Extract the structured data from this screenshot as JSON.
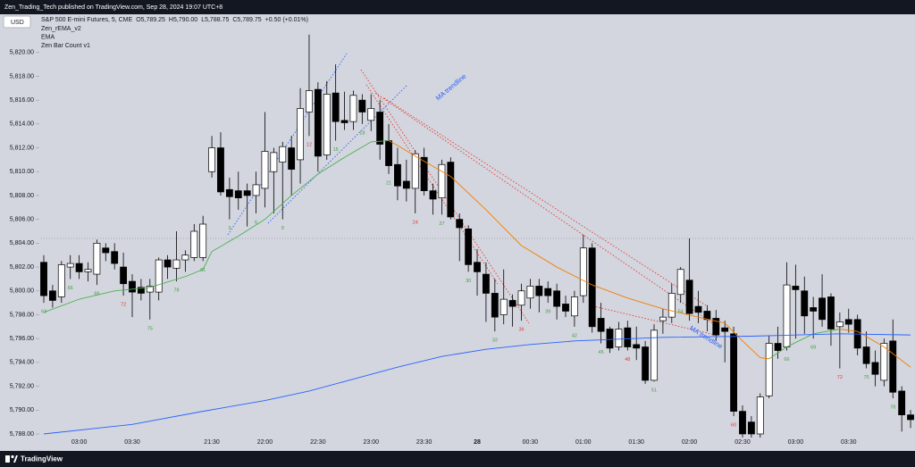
{
  "chart_data": {
    "type": "candlestick",
    "header": "Zen_Trading_Tech published on TradingView.com, Sep 28, 2024 19:07 UTC+8",
    "brand": "TradingView",
    "currency": "USD",
    "symbol": "S&P 500 E-mini Futures, 5, CME",
    "ohlc_labels": [
      "O5,789.25",
      "H5,790.00",
      "L5,788.75",
      "C5,789.75",
      "+0.50 (+0.01%)"
    ],
    "categories": [
      null,
      null,
      null,
      null,
      "03:00",
      null,
      null,
      null,
      null,
      null,
      "03:30",
      null,
      null,
      null,
      null,
      null,
      null,
      null,
      null,
      "21:30",
      null,
      null,
      null,
      null,
      null,
      "22:00",
      null,
      null,
      null,
      null,
      null,
      "22:30",
      null,
      null,
      null,
      null,
      null,
      "23:00",
      null,
      null,
      null,
      null,
      null,
      "23:30",
      null,
      null,
      null,
      null,
      null,
      "28",
      null,
      null,
      null,
      null,
      null,
      "00:30",
      null,
      null,
      null,
      null,
      null,
      "01:00",
      null,
      null,
      null,
      null,
      null,
      "01:30",
      null,
      null,
      null,
      null,
      null,
      "02:00",
      null,
      null,
      null,
      null,
      null,
      "02:30",
      null,
      null,
      null,
      null,
      null,
      "03:00",
      null,
      null,
      null,
      null,
      null,
      "03:30",
      null,
      null,
      null,
      null,
      null,
      null,
      null
    ],
    "open": [
      5802.4,
      5800,
      5799.5,
      5802,
      5802.3,
      5801.6,
      5801.4,
      5803.6,
      5803.3,
      5802,
      5800.8,
      5800.3,
      5799.9,
      5799.9,
      5802.6,
      5801.9,
      5802.6,
      5802.8,
      5802.8,
      5810,
      5812,
      5808.5,
      5808.4,
      5808.4,
      5808,
      5808.6,
      5810,
      5810.8,
      5812,
      5811,
      5815,
      5816.9,
      5811.4,
      5816.6,
      5814.3,
      5814.2,
      5816,
      5814.3,
      5815,
      5812.6,
      5810.6,
      5809.2,
      5808.6,
      5811.2,
      5808.4,
      5807.8,
      5810.8,
      5806,
      5805.2,
      5802.4,
      5801.4,
      5799.8,
      5798,
      5799.2,
      5798.8,
      5799.4,
      5800.4,
      5800.2,
      5800,
      5798.9,
      5797.9,
      5799.6,
      5803.6,
      5797.7,
      5796.8,
      5795.3,
      5796.9,
      5795.5,
      5795.3,
      5792.5,
      5797.5,
      5797.8,
      5799.7,
      5800.9,
      5798.7,
      5798.3,
      5797.7,
      5796.9,
      5796.4,
      5789.9,
      5789,
      5788,
      5791.2,
      5795.6,
      5795.3,
      5800.4,
      5800,
      5798.6,
      5799.4,
      5799.5,
      5797,
      5797.6,
      5797.6,
      5795.3,
      5794,
      5792.5,
      5795.8,
      5791.6,
      5789.6
    ],
    "high": [
      5803,
      5800.5,
      5802.5,
      5803,
      5803,
      5802.4,
      5804.3,
      5804,
      5804,
      5803.2,
      5801.4,
      5801,
      5801,
      5802.8,
      5803,
      5805,
      5803.4,
      5805.6,
      5806.3,
      5813,
      5813.3,
      5809.5,
      5810,
      5809,
      5810,
      5815,
      5812,
      5812.5,
      5813,
      5817,
      5821.5,
      5817.5,
      5817.6,
      5819,
      5816.7,
      5816.8,
      5816.5,
      5816.5,
      5816,
      5814,
      5812,
      5811,
      5811.8,
      5812,
      5809,
      5811,
      5811.2,
      5806.5,
      5805.5,
      5803.5,
      5802.4,
      5801,
      5801.8,
      5799.7,
      5800.6,
      5801,
      5801,
      5800.8,
      5800.6,
      5799.6,
      5800,
      5804.7,
      5804,
      5799,
      5797,
      5797.4,
      5797.5,
      5797,
      5795.8,
      5797.2,
      5798.5,
      5800.6,
      5802,
      5804.4,
      5800,
      5798.8,
      5798.4,
      5797.5,
      5797,
      5790.4,
      5789.5,
      5791.4,
      5796.2,
      5797,
      5802.4,
      5802.2,
      5801.2,
      5799.5,
      5801.4,
      5799.8,
      5798.2,
      5798.5,
      5798,
      5796.6,
      5795,
      5796,
      5797.6,
      5792,
      5790
    ],
    "low": [
      5799,
      5798.6,
      5799,
      5801,
      5801,
      5800.8,
      5800.5,
      5802.5,
      5801.8,
      5799.6,
      5797.8,
      5799.2,
      5797.6,
      5799.2,
      5801,
      5800.8,
      5801.6,
      5802.5,
      5802.5,
      5809.5,
      5808,
      5806,
      5806.8,
      5805.4,
      5806.5,
      5807,
      5806.5,
      5806,
      5808,
      5809,
      5813,
      5810,
      5811,
      5812.6,
      5813.5,
      5813.5,
      5814,
      5813.4,
      5811,
      5809.8,
      5807.6,
      5807.5,
      5806.5,
      5808,
      5806.4,
      5806.4,
      5806,
      5802.5,
      5801.6,
      5799.6,
      5797.4,
      5796.6,
      5797.2,
      5797,
      5797.5,
      5798.5,
      5798.2,
      5799,
      5797.6,
      5797.8,
      5797,
      5799,
      5796.5,
      5795.6,
      5794.8,
      5795,
      5795,
      5794.2,
      5792.2,
      5792.4,
      5796.4,
      5797.3,
      5799,
      5797.5,
      5797.3,
      5796.6,
      5795.8,
      5794,
      5789.5,
      5787.5,
      5787.3,
      5787.5,
      5791,
      5794.3,
      5795,
      5796,
      5796.4,
      5796,
      5797,
      5795.4,
      5793.5,
      5796.5,
      5794.6,
      5793.5,
      5792,
      5792,
      5791,
      5788.2,
      5788.5
    ],
    "close": [
      5799.6,
      5799.2,
      5802.2,
      5802.3,
      5801.6,
      5801.8,
      5804,
      5803.2,
      5802.3,
      5800.6,
      5799.9,
      5799.8,
      5800.4,
      5802.6,
      5802,
      5802.6,
      5803,
      5805,
      5805.6,
      5812,
      5808.3,
      5807.9,
      5807.8,
      5808,
      5808.9,
      5811.7,
      5811.6,
      5812.1,
      5810.2,
      5815.3,
      5816.8,
      5811.3,
      5816.5,
      5814.2,
      5814.1,
      5816.4,
      5815,
      5815.3,
      5812.3,
      5810.5,
      5808.8,
      5808.6,
      5811.5,
      5808.4,
      5807.7,
      5810.6,
      5806.2,
      5805.3,
      5802.2,
      5801.6,
      5799.8,
      5797.8,
      5799.3,
      5798.7,
      5800,
      5800.4,
      5799.6,
      5799.6,
      5798.7,
      5798.3,
      5799.5,
      5803.6,
      5797,
      5796.6,
      5795.2,
      5796.8,
      5795.3,
      5795.2,
      5792.5,
      5796.7,
      5797.8,
      5799.8,
      5801.8,
      5798.1,
      5798.2,
      5797.6,
      5796.3,
      5796.6,
      5789.9,
      5788,
      5788,
      5791.1,
      5795.6,
      5795,
      5800.5,
      5800.1,
      5797.9,
      5798.3,
      5797.6,
      5796.8,
      5797.4,
      5797.2,
      5795.2,
      5793.9,
      5793,
      5795.6,
      5791.5,
      5789.6,
      5789.2
    ],
    "up_color": "#ffffff",
    "down_color": "#000000",
    "series": [
      {
        "name": "Zen_rEMA_v2",
        "type": "line",
        "up_color": "#4caf50",
        "down_color": "#f57c00",
        "x": [
          0,
          4,
          8,
          12,
          16,
          18,
          19,
          22,
          25,
          28,
          31,
          34,
          37,
          39,
          40,
          42,
          46,
          50,
          54,
          58,
          62,
          66,
          70,
          74,
          77,
          79,
          81,
          82,
          84,
          87,
          90,
          92,
          95,
          98
        ],
        "values": [
          5798.2,
          5799.3,
          5800,
          5800.3,
          5801.2,
          5801.8,
          5803.3,
          5804.6,
          5806,
          5808,
          5809.8,
          5811.2,
          5812.5,
          5812.6,
          5812.2,
          5811.3,
          5809.6,
          5806.8,
          5803.8,
          5802,
          5800.5,
          5799.4,
          5798.5,
          5797.8,
          5797.3,
          5795.8,
          5794.4,
          5794.3,
          5795.3,
          5796.4,
          5796.8,
          5796.6,
          5795.3,
          5793.6
        ]
      },
      {
        "name": "EMA",
        "type": "line",
        "color": "#2962ff",
        "x": [
          0,
          10,
          18,
          25,
          30,
          35,
          40,
          45,
          50,
          55,
          60,
          70,
          80,
          90,
          98
        ],
        "values": [
          5788,
          5788.8,
          5789.9,
          5790.8,
          5791.6,
          5792.6,
          5793.6,
          5794.5,
          5795.1,
          5795.5,
          5795.8,
          5796.1,
          5796.2,
          5796.4,
          5796.3
        ]
      },
      {
        "name": "Zen Bar Count v1",
        "type": "count",
        "color": "#43a047",
        "highlight_every": 12,
        "highlight_color": "#e53935",
        "x": [
          0,
          3,
          6,
          9,
          12,
          15,
          18,
          21,
          24,
          27,
          30,
          33,
          36,
          39,
          42,
          45,
          48,
          51,
          54,
          57,
          60,
          63,
          66,
          69,
          72,
          78,
          84,
          87,
          90,
          93,
          96
        ],
        "values": [
          63,
          66,
          69,
          72,
          75,
          78,
          81,
          3,
          6,
          9,
          12,
          15,
          18,
          21,
          24,
          27,
          30,
          33,
          36,
          39,
          42,
          45,
          48,
          51,
          54,
          60,
          66,
          69,
          72,
          75,
          78
        ]
      }
    ],
    "annotations": [
      "MA trendline",
      "MA trendline"
    ],
    "reference_line": 5804.4,
    "xlim": [
      -0.91,
      98.5
    ],
    "ylim": [
      5787.7,
      5823.2
    ],
    "yticks": [
      {
        "value": 5788,
        "label": "5,788.00"
      },
      {
        "value": 5790,
        "label": "5,790.00"
      },
      {
        "value": 5792,
        "label": "5,792.00"
      },
      {
        "value": 5794,
        "label": "5,794.00"
      },
      {
        "value": 5796,
        "label": "5,796.00"
      },
      {
        "value": 5798,
        "label": "5,798.00"
      },
      {
        "value": 5800,
        "label": "5,800.00"
      },
      {
        "value": 5802,
        "label": "5,802.00"
      },
      {
        "value": 5804,
        "label": "5,804.00"
      },
      {
        "value": 5806,
        "label": "5,806.00"
      },
      {
        "value": 5808,
        "label": "5,808.00"
      },
      {
        "value": 5810,
        "label": "5,810.00"
      },
      {
        "value": 5812,
        "label": "5,812.00"
      },
      {
        "value": 5814,
        "label": "5,814.00"
      },
      {
        "value": 5816,
        "label": "5,816.00"
      },
      {
        "value": 5818,
        "label": "5,818.00"
      },
      {
        "value": 5820,
        "label": "5,820.00"
      }
    ],
    "bold_category": "28"
  }
}
